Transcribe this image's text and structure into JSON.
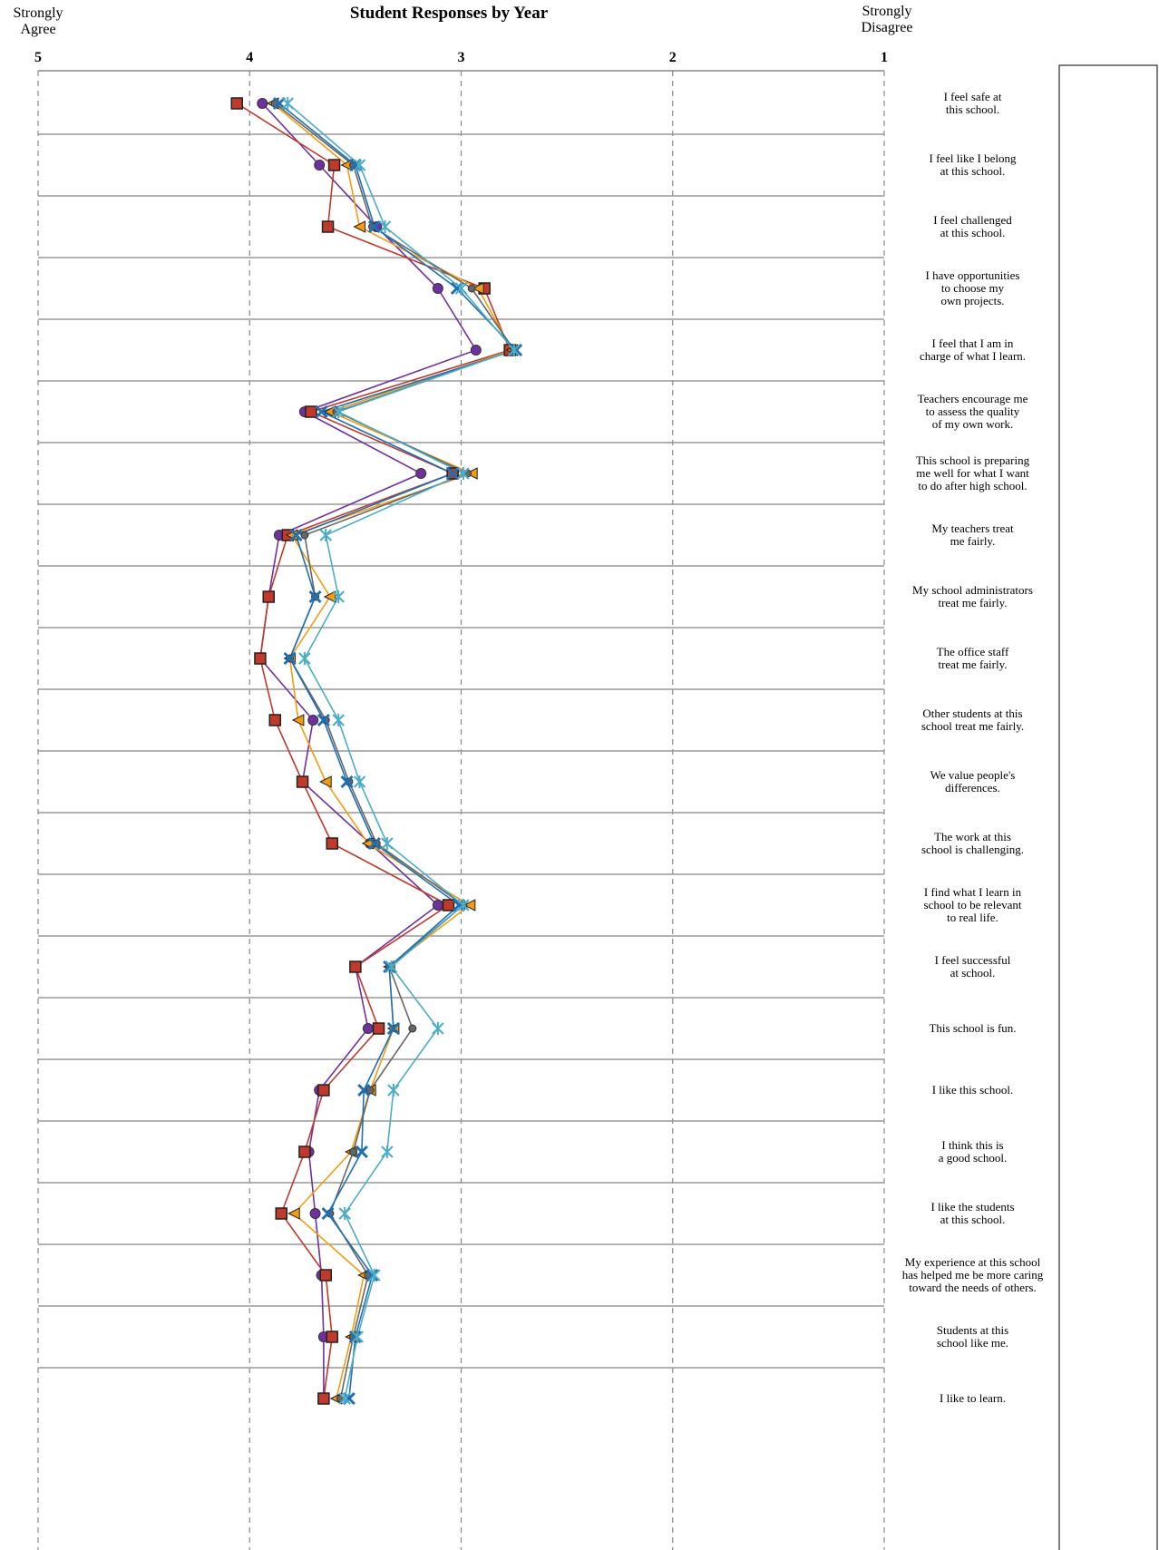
{
  "chart_data": {
    "type": "line",
    "orientation": "horizontal",
    "title": "Student Responses by Year",
    "left_label": "Strongly\nAgree",
    "right_label": "Strongly\nDisagree",
    "xlim": [
      5,
      1
    ],
    "xticks": [
      5,
      4,
      3,
      2,
      1
    ],
    "grid": true,
    "categories": [
      "I feel safe at\nthis school.",
      "I feel like I belong\nat this school.",
      "I feel challenged\nat this school.",
      "I have opportunities\nto choose my\nown projects.",
      "I feel that I am in\ncharge of what I learn.",
      "Teachers encourage me\nto assess the quality\nof my own work.",
      "This school is preparing\nme well for what I want\nto do after high school.",
      "My teachers treat\nme fairly.",
      "My school administrators\ntreat me fairly.",
      "The office staff\ntreat me fairly.",
      "Other students at this\nschool treat me fairly.",
      "We value people's\ndifferences.",
      "The work at this\nschool is challenging.",
      "I find what I learn in\nschool to be relevant\nto real life.",
      "I feel successful\nat school.",
      "This school is fun.",
      "I like this school.",
      "I think this is\na good school.",
      "I like the students\nat this school.",
      "My experience at this school\nhas helped me be more caring\ntoward the needs of others.",
      "Students at this\nschool like me.",
      "I like to learn."
    ],
    "series": [
      {
        "color": "#7030a0",
        "marker": "circle",
        "values": [
          3.94,
          3.67,
          3.4,
          3.11,
          2.93,
          3.74,
          3.19,
          3.86,
          3.91,
          3.95,
          3.7,
          3.75,
          3.43,
          3.11,
          3.5,
          3.44,
          3.67,
          3.72,
          3.69,
          3.66,
          3.65,
          3.65
        ]
      },
      {
        "color": "#c0392b",
        "marker": "square",
        "values": [
          4.06,
          3.6,
          3.63,
          2.89,
          2.77,
          3.71,
          3.04,
          3.82,
          3.91,
          3.95,
          3.88,
          3.75,
          3.61,
          3.06,
          3.5,
          3.39,
          3.65,
          3.74,
          3.85,
          3.64,
          3.61,
          3.65
        ]
      },
      {
        "color": "#f39c12",
        "marker": "triangle",
        "values": [
          3.89,
          3.54,
          3.48,
          2.92,
          2.76,
          3.62,
          2.95,
          3.8,
          3.62,
          3.81,
          3.77,
          3.64,
          3.44,
          2.96,
          3.34,
          3.32,
          3.43,
          3.52,
          3.79,
          3.46,
          3.52,
          3.59
        ]
      },
      {
        "color": "#666666",
        "marker": "dot",
        "values": [
          3.88,
          3.51,
          3.42,
          2.95,
          2.75,
          3.59,
          2.97,
          3.74,
          3.69,
          3.81,
          3.64,
          3.53,
          3.4,
          2.99,
          3.34,
          3.23,
          3.43,
          3.51,
          3.62,
          3.44,
          3.51,
          3.57
        ]
      },
      {
        "color": "#1f6fb4",
        "marker": "x",
        "values": [
          3.86,
          3.5,
          3.41,
          3.02,
          2.74,
          3.66,
          3.04,
          3.78,
          3.69,
          3.81,
          3.65,
          3.54,
          3.41,
          3.01,
          3.34,
          3.32,
          3.46,
          3.47,
          3.63,
          3.42,
          3.5,
          3.53
        ]
      },
      {
        "color": "#4bacc6",
        "marker": "asterisk",
        "values": [
          3.82,
          3.48,
          3.36,
          3.0,
          2.75,
          3.58,
          2.99,
          3.64,
          3.58,
          3.74,
          3.58,
          3.48,
          3.35,
          2.99,
          3.33,
          3.11,
          3.32,
          3.35,
          3.55,
          3.41,
          3.49,
          3.55
        ]
      }
    ]
  }
}
